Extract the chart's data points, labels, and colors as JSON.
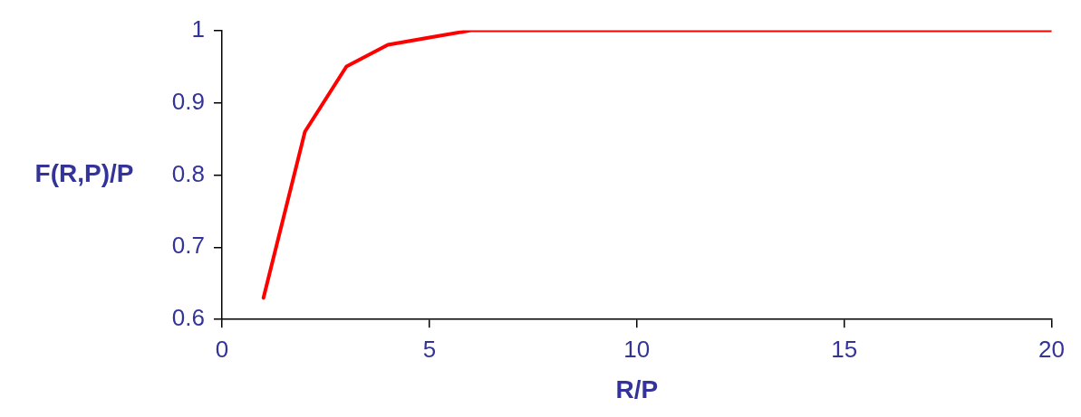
{
  "chart_data": {
    "type": "line",
    "xlabel": "R/P",
    "ylabel": "F(R,P)/P",
    "x": [
      1,
      2,
      3,
      4,
      5,
      6,
      7,
      8,
      9,
      10,
      11,
      12,
      13,
      14,
      15,
      16,
      17,
      18,
      19,
      20
    ],
    "series": [
      {
        "color": "#ff0000",
        "values": [
          0.63,
          0.86,
          0.95,
          0.98,
          0.99,
          1,
          1,
          1,
          1,
          1,
          1,
          1,
          1,
          1,
          1,
          1,
          1,
          1,
          1,
          1
        ]
      }
    ],
    "xlim": [
      0,
      20
    ],
    "xticks": [
      0,
      5,
      10,
      15,
      20
    ],
    "ylim": [
      0.6,
      1
    ],
    "yticks": [
      0.6,
      0.7,
      0.8,
      0.9,
      1
    ],
    "grid": false,
    "legend": false,
    "marker": "none",
    "line_style": "solid"
  }
}
